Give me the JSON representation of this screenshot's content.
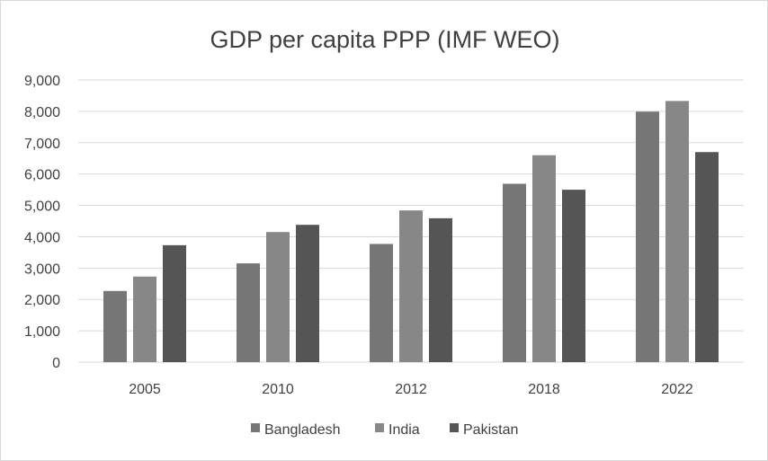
{
  "chart_data": {
    "type": "bar",
    "title": "GDP per capita PPP (IMF WEO)",
    "categories": [
      "2005",
      "2010",
      "2012",
      "2018",
      "2022"
    ],
    "series": [
      {
        "name": "Bangladesh",
        "values": [
          2270,
          3150,
          3770,
          5690,
          7990
        ],
        "color": "#767676"
      },
      {
        "name": "India",
        "values": [
          2730,
          4150,
          4840,
          6600,
          8330
        ],
        "color": "#878787"
      },
      {
        "name": "Pakistan",
        "values": [
          3730,
          4380,
          4590,
          5500,
          6700
        ],
        "color": "#555555"
      }
    ],
    "ylim": [
      0,
      9000
    ],
    "yticks": [
      0,
      1000,
      2000,
      3000,
      4000,
      5000,
      6000,
      7000,
      8000,
      9000
    ],
    "ytick_labels": [
      "0",
      "1,000",
      "2,000",
      "3,000",
      "4,000",
      "5,000",
      "6,000",
      "7,000",
      "8,000",
      "9,000"
    ],
    "grid": true,
    "gridline_color": "#d9d9d9",
    "legend_position": "bottom",
    "xlabel": "",
    "ylabel": ""
  }
}
